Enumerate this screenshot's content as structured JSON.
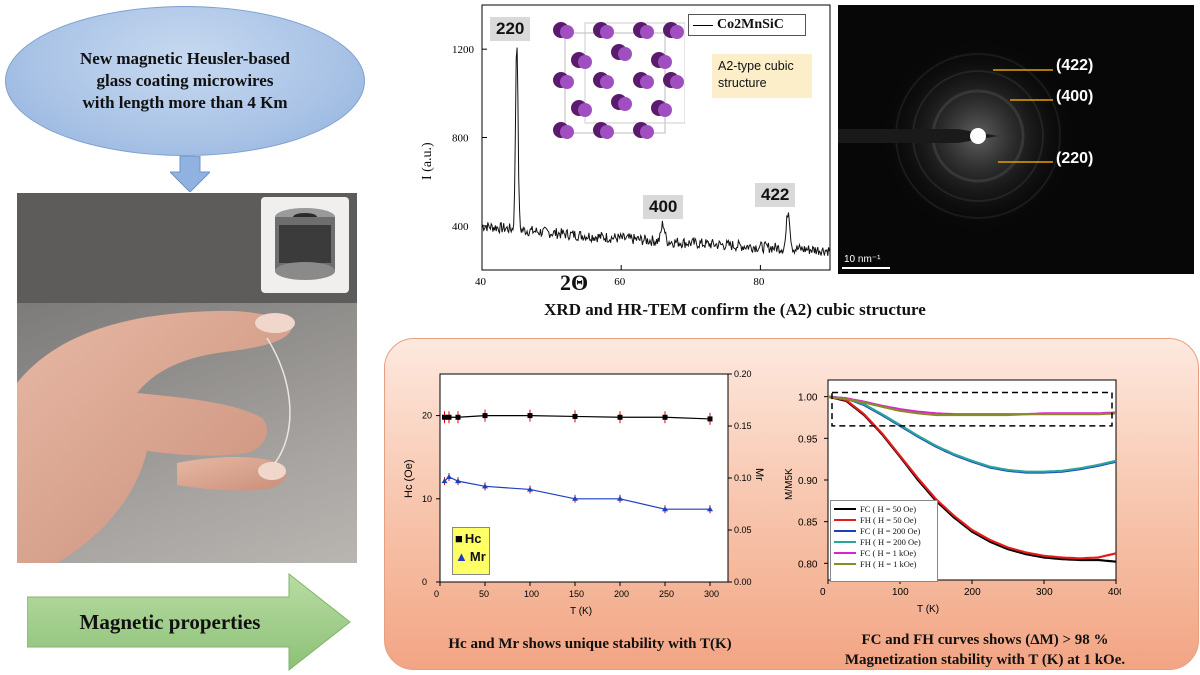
{
  "intro": {
    "text": [
      "New magnetic Heusler-based",
      "glass coating microwires",
      "with length more than 4 Km"
    ]
  },
  "arrow_label": "Magnetic properties",
  "xrd": {
    "legend": "Co2MnSiC",
    "inset_text": [
      "A2-type cubic",
      "structure"
    ],
    "peaks": [
      {
        "label": "220",
        "x": 45
      },
      {
        "label": "400",
        "x": 66
      },
      {
        "label": "422",
        "x": 84
      }
    ],
    "ylabel": "I (a.u.)",
    "xlabel": "2Θ",
    "xticks": [
      "40",
      "60",
      "80"
    ],
    "yticks": [
      "400",
      "800",
      "1200"
    ],
    "caption": "XRD and HR-TEM confirm the (A2) cubic structure"
  },
  "tem": {
    "labels": [
      "(422)",
      "(400)",
      "(220)"
    ],
    "scale": "10 nm⁻¹"
  },
  "hc_mr": {
    "ylabel_left": "Hc (Oe)",
    "ylabel_right": "Mr",
    "xlabel": "T (K)",
    "xticks": [
      "0",
      "50",
      "100",
      "150",
      "200",
      "250",
      "300"
    ],
    "yticks_left": [
      "0",
      "10",
      "20"
    ],
    "yticks_right": [
      "0.00",
      "0.05",
      "0.10",
      "0.15",
      "0.20"
    ],
    "legend": [
      "Hc",
      "Mr"
    ],
    "caption": [
      "Hc and Mr shows unique stability with T(K)"
    ]
  },
  "fc_fh": {
    "ylabel": "M/M5K",
    "xlabel": "T (K)",
    "xticks": [
      "0",
      "100",
      "200",
      "300",
      "400"
    ],
    "yticks": [
      "0.80",
      "0.85",
      "0.90",
      "0.95",
      "1.00"
    ],
    "legend": [
      "FC ( H = 50 Oe)",
      "FH ( H = 50 Oe)",
      "FC ( H = 200 Oe)",
      "FH ( H = 200 Oe)",
      "FC ( H = 1 kOe)",
      "FH ( H = 1 kOe)"
    ],
    "caption": [
      "FC and FH curves shows (ΔM) > 98 %",
      "Magnetization stability with T (K) at 1 kOe."
    ]
  },
  "chart_data": [
    {
      "type": "line",
      "series": [
        {
          "name": "Co2MnSiC"
        }
      ],
      "xlabel": "2Θ",
      "ylabel": "I (a.u.)",
      "xlim": [
        40,
        90
      ],
      "ylim": [
        200,
        1400
      ],
      "peaks": [
        {
          "x": 45,
          "y": 1250,
          "label": "220"
        },
        {
          "x": 66,
          "y": 410,
          "label": "400"
        },
        {
          "x": 84,
          "y": 470,
          "label": "422"
        }
      ]
    },
    {
      "type": "scatter",
      "xlabel": "T (K)",
      "ylabel": "Hc (Oe)",
      "ylabel_right": "Mr",
      "x": [
        5,
        10,
        20,
        50,
        100,
        150,
        200,
        250,
        300
      ],
      "series": [
        {
          "name": "Hc",
          "axis": "left",
          "values": [
            19.8,
            19.8,
            19.8,
            20,
            20,
            19.9,
            19.8,
            19.8,
            19.6
          ]
        },
        {
          "name": "Mr",
          "axis": "right",
          "values": [
            0.097,
            0.101,
            0.097,
            0.092,
            0.089,
            0.08,
            0.08,
            0.07,
            0.07
          ]
        }
      ],
      "ylim_left": [
        0,
        25
      ],
      "ylim_right": [
        0,
        0.2
      ],
      "xlim": [
        0,
        320
      ]
    },
    {
      "type": "line",
      "xlabel": "T (K)",
      "ylabel": "M/M5K",
      "xlim": [
        0,
        400
      ],
      "ylim": [
        0.78,
        1.02
      ],
      "x": [
        0,
        25,
        50,
        75,
        100,
        125,
        150,
        175,
        200,
        225,
        250,
        275,
        300,
        325,
        350,
        375,
        400
      ],
      "series": [
        {
          "name": "FC ( H = 50 Oe)",
          "color": "#000000",
          "values": [
            1.0,
            0.995,
            0.978,
            0.955,
            0.928,
            0.9,
            0.875,
            0.855,
            0.838,
            0.826,
            0.817,
            0.811,
            0.807,
            0.805,
            0.804,
            0.804,
            0.802
          ]
        },
        {
          "name": "FH ( H = 50 Oe)",
          "color": "#e21b1b",
          "values": [
            1.0,
            0.996,
            0.979,
            0.956,
            0.929,
            0.902,
            0.877,
            0.857,
            0.84,
            0.828,
            0.819,
            0.813,
            0.809,
            0.807,
            0.806,
            0.807,
            0.812
          ]
        },
        {
          "name": "FC ( H = 200 Oe)",
          "color": "#1f3fbf",
          "values": [
            1.0,
            0.998,
            0.99,
            0.978,
            0.965,
            0.952,
            0.94,
            0.93,
            0.922,
            0.915,
            0.911,
            0.909,
            0.909,
            0.91,
            0.913,
            0.917,
            0.922
          ]
        },
        {
          "name": "FH ( H = 200 Oe)",
          "color": "#2aa39a",
          "values": [
            1.0,
            0.998,
            0.991,
            0.979,
            0.966,
            0.953,
            0.941,
            0.931,
            0.923,
            0.916,
            0.912,
            0.91,
            0.91,
            0.911,
            0.914,
            0.918,
            0.923
          ]
        },
        {
          "name": "FC ( H = 1 kOe)",
          "color": "#e020d0",
          "values": [
            1.0,
            0.998,
            0.994,
            0.989,
            0.985,
            0.982,
            0.98,
            0.979,
            0.979,
            0.979,
            0.979,
            0.979,
            0.98,
            0.98,
            0.98,
            0.98,
            0.981
          ]
        },
        {
          "name": "FH ( H = 1 kOe)",
          "color": "#8a8a2a",
          "values": [
            1.0,
            0.997,
            0.993,
            0.988,
            0.983,
            0.98,
            0.978,
            0.978,
            0.978,
            0.978,
            0.978,
            0.979,
            0.979,
            0.979,
            0.979,
            0.979,
            0.98
          ]
        }
      ]
    }
  ]
}
